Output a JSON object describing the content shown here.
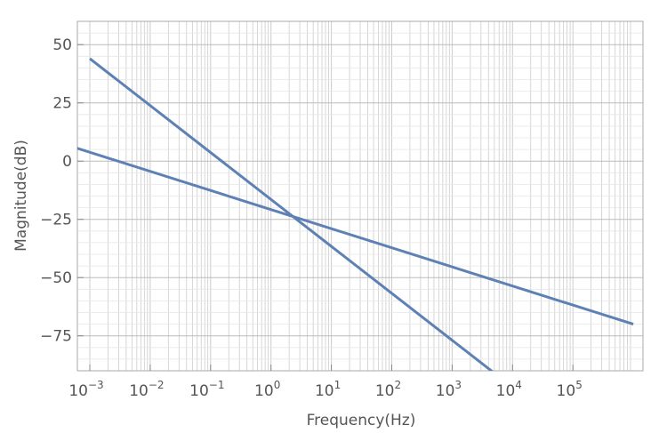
{
  "chart_data": {
    "type": "line",
    "title": "",
    "xlabel": "Frequency(Hz)",
    "ylabel": "Magnitude(dB)",
    "x_scale": "log",
    "xlim": [
      0.001,
      1000000
    ],
    "ylim": [
      -90,
      60
    ],
    "x_ticks": [
      {
        "base": "10",
        "exp": "−3"
      },
      {
        "base": "10",
        "exp": "−2"
      },
      {
        "base": "10",
        "exp": "−1"
      },
      {
        "base": "10",
        "exp": "0"
      },
      {
        "base": "10",
        "exp": "1"
      },
      {
        "base": "10",
        "exp": "2"
      },
      {
        "base": "10",
        "exp": "3"
      },
      {
        "base": "10",
        "exp": "4"
      },
      {
        "base": "10",
        "exp": "5"
      }
    ],
    "y_ticks": [
      "50",
      "25",
      "0",
      "−25",
      "−50",
      "−75"
    ],
    "grid": true,
    "series": [
      {
        "x": [
          0.0001,
          1000000
        ],
        "y": [
          12,
          -70
        ]
      },
      {
        "x": [
          0.001,
          5000
        ],
        "y": [
          44,
          -91
        ]
      }
    ],
    "colors": {
      "line": "#5E81B5",
      "grid": "#cccccc",
      "frame": "#aaaaaa"
    }
  }
}
